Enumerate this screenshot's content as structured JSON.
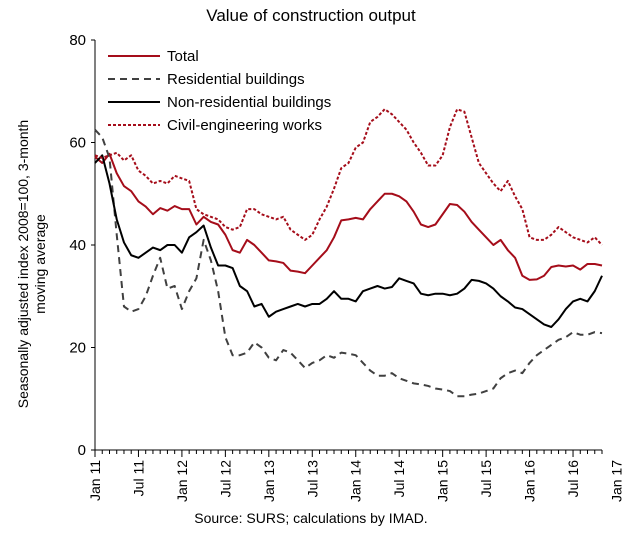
{
  "chart_data": {
    "type": "line",
    "title": "Value of construction output",
    "ylabel_lines": [
      "Seasonally adjusted index 2008=100, 3-month",
      "moving average"
    ],
    "source": "Source: SURS; calculations by IMAD.",
    "ylim": [
      0,
      80
    ],
    "yticks": [
      0,
      20,
      40,
      60,
      80
    ],
    "x_start": "2011-01",
    "xticks": [
      "Jan 11",
      "Jul 11",
      "Jan 12",
      "Jul 12",
      "Jan 13",
      "Jul 13",
      "Jan 14",
      "Jul 14",
      "Jan 15",
      "Jul 15",
      "Jan 16",
      "Jul 16",
      "Jan 17"
    ],
    "grid": false,
    "legend_position": "top-left",
    "series": [
      {
        "name": "Total",
        "color": "#a50d1a",
        "dash": "solid",
        "values": [
          57.2,
          56.0,
          57.8,
          54.0,
          51.5,
          50.5,
          48.5,
          47.5,
          46.0,
          47.2,
          46.7,
          47.6,
          47.0,
          47.0,
          44.0,
          45.5,
          44.5,
          44.0,
          42.0,
          39.0,
          38.5,
          41.0,
          40.0,
          38.5,
          37.0,
          36.8,
          36.5,
          35.0,
          34.8,
          34.5,
          36.0,
          37.5,
          39.0,
          41.5,
          44.8,
          45.0,
          45.3,
          45.0,
          47.0,
          48.5,
          50.0,
          50.0,
          49.5,
          48.5,
          46.5,
          44.0,
          43.5,
          44.0,
          46.0,
          48.0,
          47.8,
          46.5,
          44.5,
          43.0,
          41.5,
          40.0,
          41.0,
          39.0,
          37.5,
          34.0,
          33.2,
          33.3,
          34.0,
          35.7,
          36.0,
          35.8,
          36.0,
          35.2,
          36.3,
          36.3,
          36.0
        ]
      },
      {
        "name": "Residential buildings",
        "color": "#404040",
        "dash": "dash",
        "values": [
          62.5,
          61.0,
          57.0,
          42.0,
          28.0,
          27.0,
          27.5,
          30.0,
          34.0,
          37.5,
          31.5,
          32.0,
          27.5,
          31.0,
          33.5,
          41.0,
          37.0,
          31.0,
          22.0,
          18.5,
          18.5,
          19.0,
          21.0,
          20.0,
          18.0,
          17.5,
          19.5,
          19.0,
          17.5,
          16.0,
          17.0,
          17.5,
          18.5,
          18.0,
          19.0,
          18.8,
          18.5,
          17.0,
          15.5,
          14.5,
          14.5,
          15.0,
          14.0,
          13.5,
          13.0,
          12.8,
          12.5,
          12.0,
          11.8,
          11.5,
          10.5,
          10.5,
          10.8,
          11.0,
          11.5,
          12.0,
          14.0,
          15.0,
          15.5,
          15.0,
          17.0,
          18.5,
          19.5,
          20.5,
          21.5,
          22.0,
          23.0,
          22.5,
          22.5,
          23.0,
          22.8
        ]
      },
      {
        "name": "Non-residential buildings",
        "color": "#000000",
        "dash": "solid",
        "values": [
          56.0,
          57.5,
          52.0,
          45.0,
          40.5,
          38.0,
          37.5,
          38.5,
          39.5,
          39.0,
          40.0,
          40.0,
          38.5,
          41.5,
          42.5,
          43.8,
          39.5,
          36.0,
          36.0,
          35.5,
          32.0,
          31.0,
          28.0,
          28.5,
          26.0,
          27.0,
          27.5,
          28.0,
          28.5,
          28.0,
          28.5,
          28.5,
          29.5,
          31.0,
          29.5,
          29.5,
          29.0,
          31.0,
          31.5,
          32.0,
          31.5,
          31.8,
          33.5,
          33.0,
          32.5,
          30.5,
          30.2,
          30.5,
          30.5,
          30.2,
          30.5,
          31.5,
          33.2,
          33.0,
          32.5,
          31.5,
          30.0,
          29.0,
          27.8,
          27.5,
          26.5,
          25.5,
          24.5,
          24.0,
          25.5,
          27.5,
          29.0,
          29.5,
          29.0,
          31.0,
          34.0
        ]
      },
      {
        "name": "Civil-engineering works",
        "color": "#a50d1a",
        "dash": "dot",
        "values": [
          57.5,
          57.0,
          57.5,
          58.0,
          56.5,
          57.5,
          54.5,
          53.5,
          52.0,
          52.5,
          52.0,
          53.5,
          53.0,
          52.5,
          47.0,
          46.0,
          45.5,
          45.0,
          43.5,
          43.0,
          43.5,
          47.0,
          47.0,
          46.0,
          45.5,
          45.0,
          45.5,
          43.0,
          42.0,
          41.0,
          42.0,
          45.0,
          47.5,
          51.0,
          55.0,
          56.0,
          59.0,
          60.0,
          64.0,
          65.0,
          66.5,
          65.5,
          64.0,
          62.5,
          60.0,
          58.0,
          55.5,
          55.5,
          57.5,
          63.0,
          66.5,
          66.0,
          61.0,
          56.0,
          54.0,
          52.0,
          50.5,
          52.5,
          49.5,
          47.0,
          41.5,
          41.0,
          41.0,
          42.0,
          43.5,
          42.5,
          41.5,
          41.0,
          40.5,
          41.5,
          40.0
        ]
      }
    ]
  }
}
